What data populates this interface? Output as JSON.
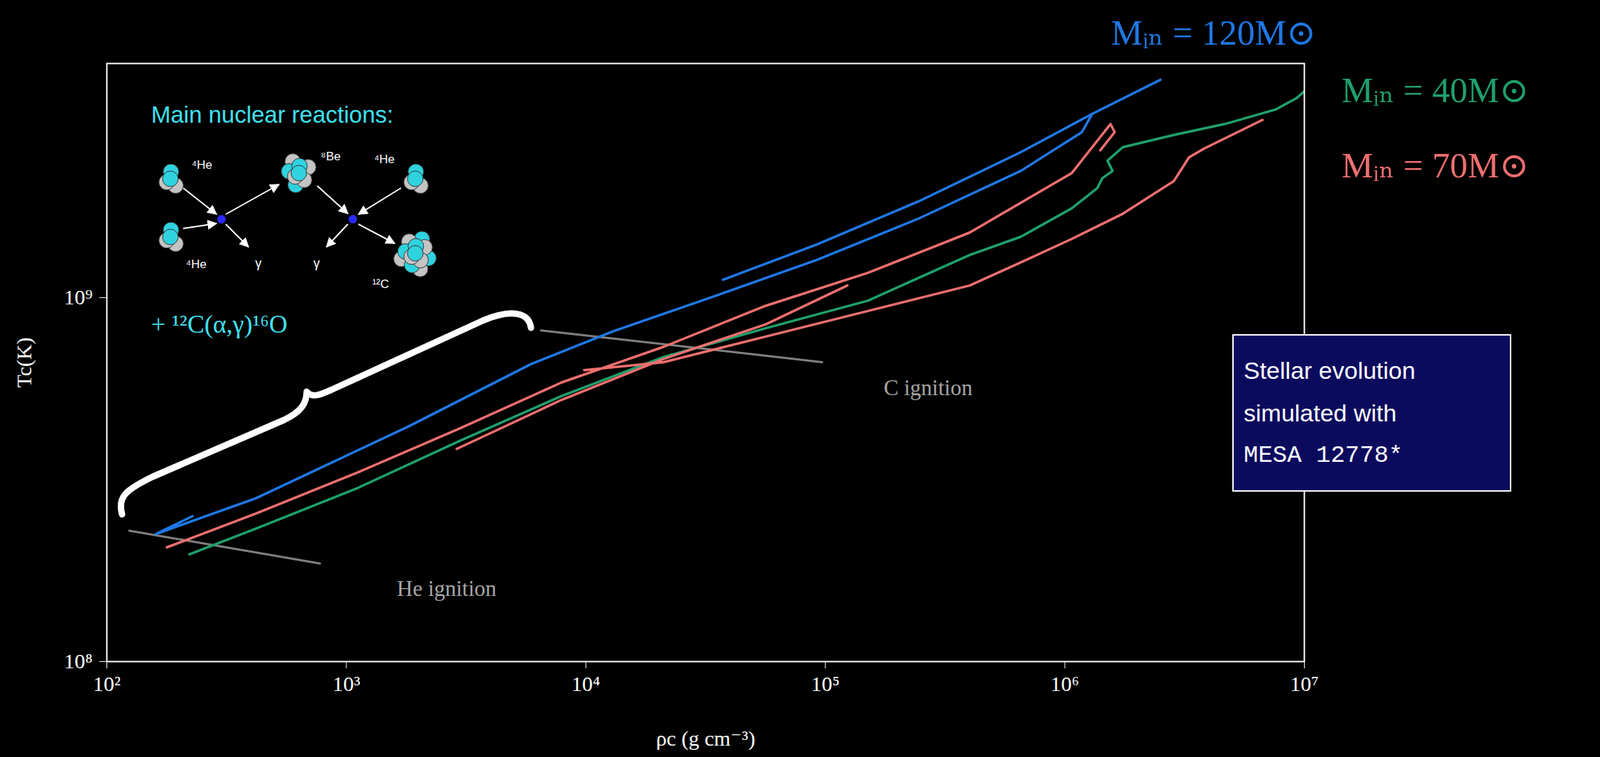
{
  "chart_data": {
    "type": "line",
    "x_label": "ρc (g cm⁻³)",
    "y_label": "Tc(K)",
    "log": true,
    "xlim": [
      100.0,
      10000000.0
    ],
    "ylim": [
      100000000.0,
      4400000000.0
    ],
    "xticks": [
      {
        "value": 100.0,
        "label": "10²"
      },
      {
        "value": 1000.0,
        "label": "10³"
      },
      {
        "value": 10000.0,
        "label": "10⁴"
      },
      {
        "value": 100000.0,
        "label": "10⁵"
      },
      {
        "value": 1000000.0,
        "label": "10⁶"
      },
      {
        "value": 10000000.0,
        "label": "10⁷"
      }
    ],
    "yticks": [
      {
        "value": 100000000.0,
        "label": "10⁸"
      },
      {
        "value": 1000000000.0,
        "label": "10⁹"
      }
    ],
    "legend": "top right",
    "series": [
      {
        "name": "Mᵢₙ = 120M⊙",
        "color": "#1f78e6",
        "x": [
          228,
          160,
          419,
          683,
          1823,
          5910,
          12960,
          34540,
          92100,
          245500,
          654600,
          1179000,
          1301000,
          null,
          37360,
          92100,
          245500,
          654600,
          1301000,
          2509000
        ],
        "values": [
          251000000.0,
          224000000.0,
          281000000.0,
          327000000.0,
          443000000.0,
          657000000.0,
          808000000.0,
          1010000000.0,
          1270000000.0,
          1650000000.0,
          2230000000.0,
          2850000000.0,
          3200000000.0,
          null,
          1120000000.0,
          1400000000.0,
          1840000000.0,
          2510000000.0,
          3200000000.0,
          3970000000.0
        ]
      },
      {
        "name": "Mᵢₙ = 40M⊙",
        "color": "#1fa06c",
        "x": [
          221,
          419,
          1116,
          2976,
          7930,
          21150,
          56400,
          150400,
          400900,
          654600,
          1069000,
          1366000,
          1435000,
          1582000,
          1507000,
          1745000,
          2850000,
          4653000,
          7600000,
          9250000,
          10000000.0
        ],
        "values": [
          197000000.0,
          232000000.0,
          300000000.0,
          404000000.0,
          537000000.0,
          687000000.0,
          824000000.0,
          981000000.0,
          1310000000.0,
          1470000000.0,
          1760000000.0,
          2000000000.0,
          2130000000.0,
          2230000000.0,
          2380000000.0,
          2590000000.0,
          2800000000.0,
          3000000000.0,
          3290000000.0,
          3530000000.0,
          3690000000.0
        ]
      },
      {
        "name": "Mᵢₙ = 70M⊙",
        "color": "#ee6f6f",
        "x": [
          178,
          419,
          1116,
          2976,
          7930,
          21150,
          56400,
          150400,
          400900,
          1069000,
          1551000,
          1614000,
          1406000,
          null,
          2890,
          7930,
          21150,
          56400,
          123600,
          null,
          9840,
          21150,
          56400,
          150400,
          400900,
          654600,
          1069000,
          1745000,
          2850000,
          3301000,
          3824000,
          6690000
        ],
        "values": [
          206000000.0,
          255000000.0,
          331000000.0,
          437000000.0,
          585000000.0,
          733000000.0,
          950000000.0,
          1170000000.0,
          1510000000.0,
          2200000000.0,
          3000000000.0,
          2850000000.0,
          2540000000.0,
          null,
          384000000.0,
          524000000.0,
          679000000.0,
          845000000.0,
          1080000000.0,
          null,
          632000000.0,
          665000000.0,
          782000000.0,
          919000000.0,
          1080000000.0,
          1250000000.0,
          1450000000.0,
          1700000000.0,
          2090000000.0,
          2430000000.0,
          2570000000.0,
          3080000000.0
        ]
      }
    ],
    "ignition_lines": [
      {
        "name": "He ignition",
        "color": "#808080",
        "x": [
          124,
          776
        ],
        "values": [
          229000000.0,
          186000000.0
        ]
      },
      {
        "name": "C ignition",
        "color": "#808080",
        "x": [
          6500,
          97000
        ],
        "values": [
          813000000.0,
          665000000.0
        ]
      }
    ],
    "annotations": {
      "reactions_title": "Main nuclear reactions:",
      "reactions_extra": "+ ¹²C(α,γ)¹⁶O",
      "reaction_diagram": {
        "nuclei": [
          "⁴He",
          "⁴He",
          "⁸Be",
          "⁴He",
          "¹²C"
        ],
        "photon": "γ"
      },
      "text_box": [
        "Stellar evolution",
        "simulated with",
        "MESA 12778*"
      ]
    }
  }
}
